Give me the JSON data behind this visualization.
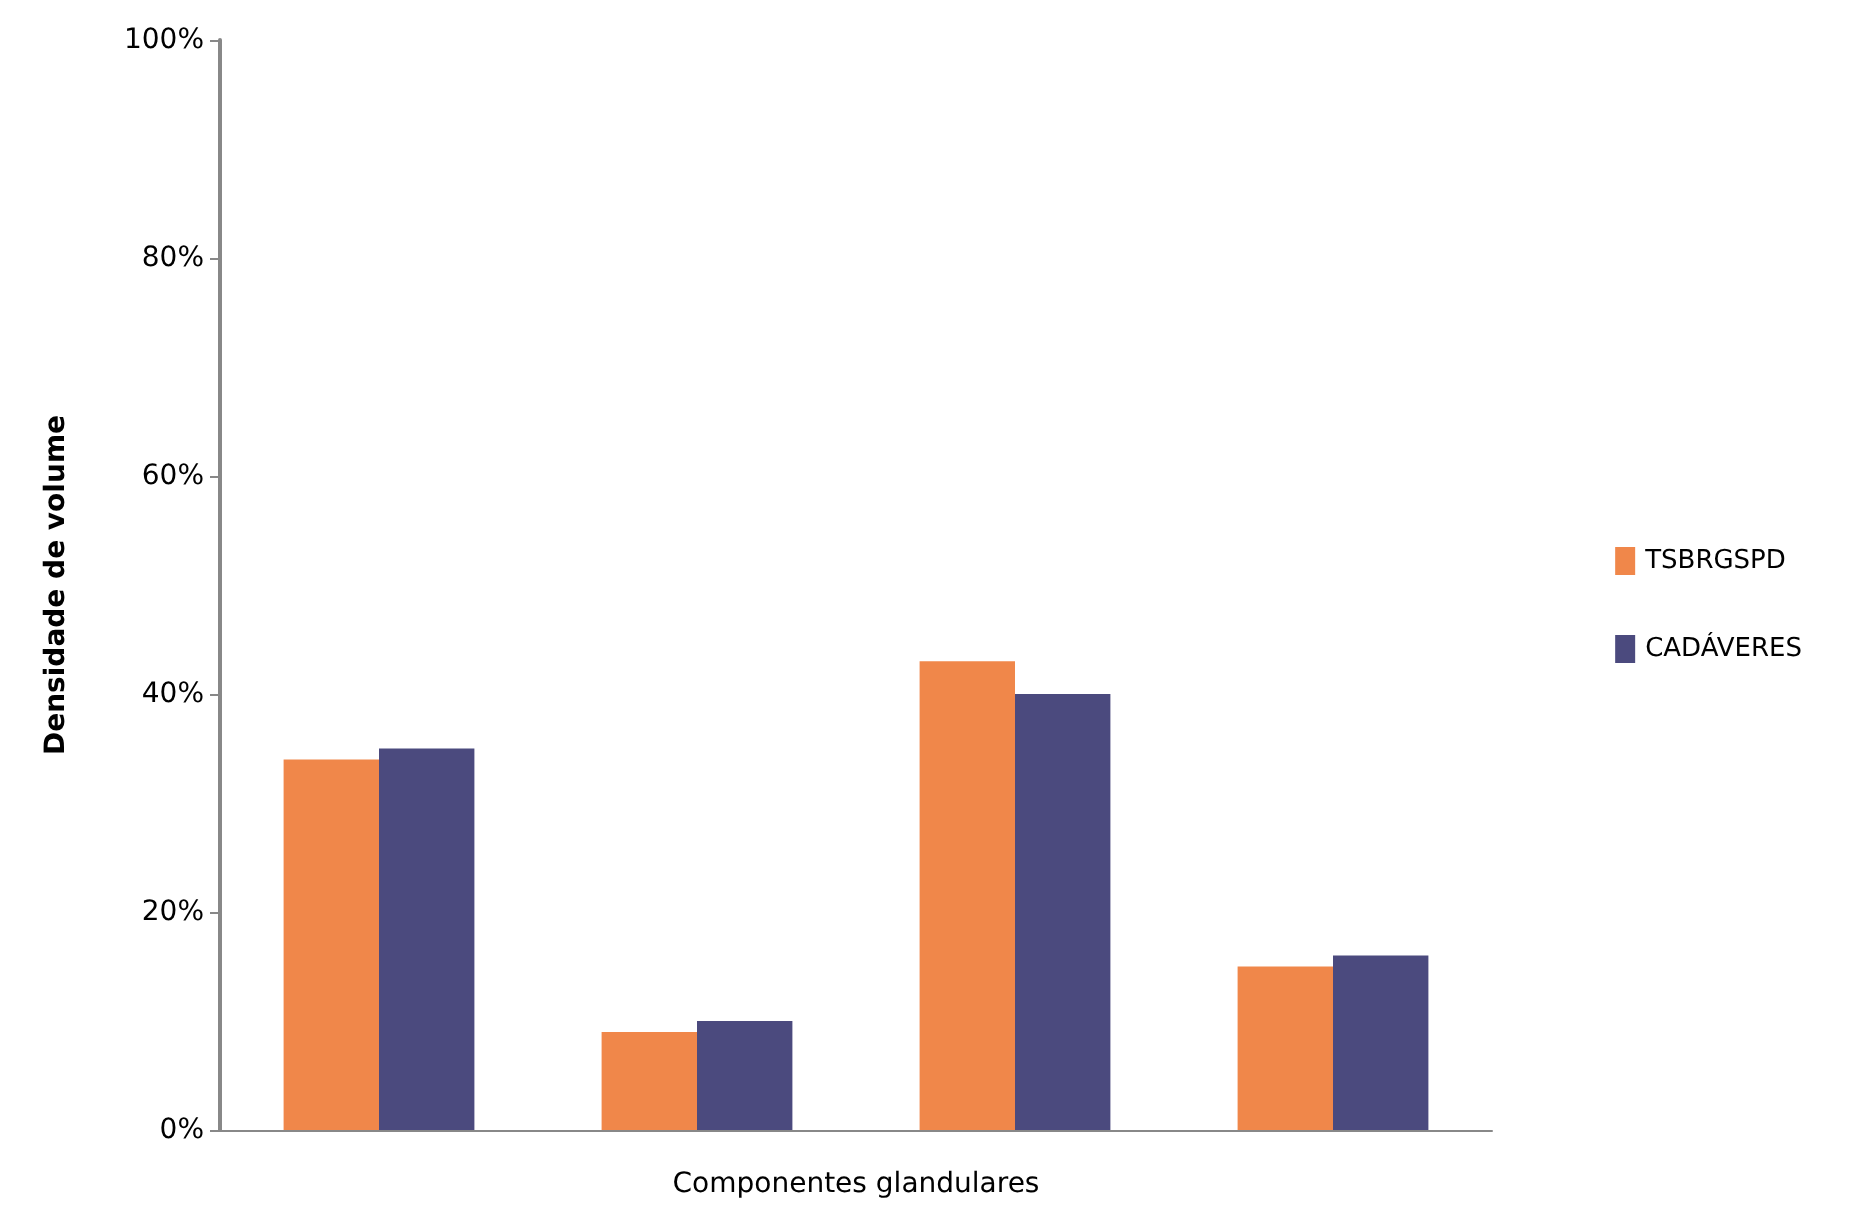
{
  "chart_data": {
    "type": "bar",
    "xlabel": "Componentes glandulares",
    "ylabel": "Densidade de volume",
    "categories": [
      null,
      null,
      null,
      null
    ],
    "series": [
      {
        "name": "TSBRGSPD",
        "color": "#f0874a",
        "values": [
          34,
          9,
          43,
          15
        ]
      },
      {
        "name": "CADÁVERES",
        "color": "#4b4a7e",
        "values": [
          35,
          10,
          40,
          16
        ]
      }
    ],
    "ylim": [
      0,
      100
    ],
    "yticks": [
      {
        "value": 0,
        "label": "0%"
      },
      {
        "value": 20,
        "label": "20%"
      },
      {
        "value": 40,
        "label": "40%"
      },
      {
        "value": 60,
        "label": "60%"
      },
      {
        "value": 80,
        "label": "80%"
      },
      {
        "value": 100,
        "label": "100%"
      }
    ],
    "grid": false,
    "legend": "right"
  }
}
